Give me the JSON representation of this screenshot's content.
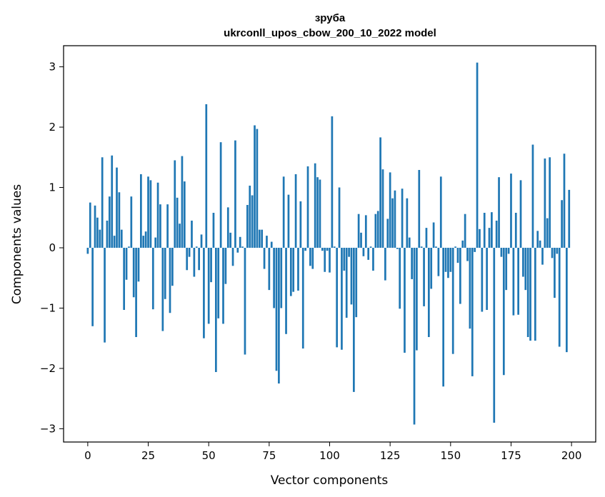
{
  "chart_data": {
    "type": "bar",
    "title": "зруба",
    "subtitle": "ukrconll_upos_cbow_200_10_2022 model",
    "xlabel": "Vector components",
    "ylabel": "Components values",
    "xlim": [
      -10,
      210
    ],
    "ylim": [
      -3.22,
      3.35
    ],
    "xticks": [
      0,
      25,
      50,
      75,
      100,
      125,
      150,
      175,
      200
    ],
    "xtick_labels": [
      "0",
      "25",
      "50",
      "75",
      "100",
      "125",
      "150",
      "175",
      "200"
    ],
    "yticks": [
      3,
      2,
      1,
      0,
      -1,
      -2,
      -3
    ],
    "ytick_labels": [
      "3",
      "2",
      "1",
      "0",
      "−1",
      "−2",
      "−3"
    ],
    "grid": false,
    "bar_color": "#1f77b4",
    "x": [
      0,
      1,
      2,
      3,
      4,
      5,
      6,
      7,
      8,
      9,
      10,
      11,
      12,
      13,
      14,
      15,
      16,
      17,
      18,
      19,
      20,
      21,
      22,
      23,
      24,
      25,
      26,
      27,
      28,
      29,
      30,
      31,
      32,
      33,
      34,
      35,
      36,
      37,
      38,
      39,
      40,
      41,
      42,
      43,
      44,
      45,
      46,
      47,
      48,
      49,
      50,
      51,
      52,
      53,
      54,
      55,
      56,
      57,
      58,
      59,
      60,
      61,
      62,
      63,
      64,
      65,
      66,
      67,
      68,
      69,
      70,
      71,
      72,
      73,
      74,
      75,
      76,
      77,
      78,
      79,
      80,
      81,
      82,
      83,
      84,
      85,
      86,
      87,
      88,
      89,
      90,
      91,
      92,
      93,
      94,
      95,
      96,
      97,
      98,
      99,
      100,
      101,
      102,
      103,
      104,
      105,
      106,
      107,
      108,
      109,
      110,
      111,
      112,
      113,
      114,
      115,
      116,
      117,
      118,
      119,
      120,
      121,
      122,
      123,
      124,
      125,
      126,
      127,
      128,
      129,
      130,
      131,
      132,
      133,
      134,
      135,
      136,
      137,
      138,
      139,
      140,
      141,
      142,
      143,
      144,
      145,
      146,
      147,
      148,
      149,
      150,
      151,
      152,
      153,
      154,
      155,
      156,
      157,
      158,
      159,
      160,
      161,
      162,
      163,
      164,
      165,
      166,
      167,
      168,
      169,
      170,
      171,
      172,
      173,
      174,
      175,
      176,
      177,
      178,
      179,
      180,
      181,
      182,
      183,
      184,
      185,
      186,
      187,
      188,
      189,
      190,
      191,
      192,
      193,
      194,
      195,
      196,
      197,
      198,
      199
    ],
    "values": [
      -0.1,
      0.75,
      -1.3,
      0.7,
      0.5,
      0.3,
      1.5,
      -1.57,
      0.45,
      0.85,
      1.53,
      0.2,
      1.33,
      0.92,
      0.3,
      -1.03,
      -0.53,
      0.02,
      0.85,
      -0.82,
      -1.48,
      -0.56,
      1.22,
      0.2,
      0.27,
      1.18,
      1.12,
      -1.02,
      0.17,
      1.08,
      0.72,
      -1.38,
      -0.85,
      0.72,
      -1.08,
      -0.63,
      1.45,
      0.83,
      0.4,
      1.52,
      1.1,
      -0.37,
      -0.15,
      0.45,
      -0.48,
      0.02,
      -0.37,
      0.22,
      -1.5,
      2.38,
      -1.26,
      -0.57,
      0.58,
      -2.06,
      -1.17,
      1.75,
      -1.26,
      -0.6,
      0.67,
      0.25,
      -0.3,
      1.78,
      -0.08,
      0.18,
      0.02,
      -1.77,
      0.71,
      1.03,
      0.87,
      2.03,
      1.97,
      0.3,
      0.3,
      -0.35,
      0.2,
      -0.7,
      0.1,
      -1.0,
      -2.04,
      -2.25,
      -1.0,
      1.18,
      -1.43,
      0.88,
      -0.8,
      -0.73,
      1.22,
      -0.71,
      0.77,
      -1.67,
      -0.05,
      1.35,
      -0.3,
      -0.35,
      1.4,
      1.17,
      1.13,
      -0.05,
      -0.4,
      -0.05,
      -0.41,
      2.18,
      0.02,
      -1.65,
      1.0,
      -1.69,
      -0.38,
      -1.16,
      -0.15,
      -0.94,
      -2.39,
      -1.15,
      0.56,
      0.25,
      -0.14,
      0.54,
      -0.2,
      0.02,
      -0.38,
      0.56,
      0.61,
      1.83,
      1.3,
      -0.54,
      0.48,
      1.25,
      0.82,
      0.95,
      -0.02,
      -1.01,
      0.98,
      -1.74,
      0.82,
      0.17,
      -0.52,
      -2.93,
      -1.7,
      1.29,
      0.02,
      -0.97,
      0.33,
      -1.48,
      -0.68,
      0.42,
      0.02,
      -0.47,
      1.18,
      -2.3,
      -0.4,
      -0.5,
      -0.4,
      -1.76,
      0.02,
      -0.25,
      -0.93,
      0.12,
      0.56,
      -0.22,
      -1.34,
      -2.13,
      -0.07,
      3.07,
      0.31,
      -1.06,
      0.58,
      -1.03,
      0.33,
      0.59,
      -2.9,
      0.45,
      1.17,
      -0.15,
      -2.11,
      -0.7,
      -0.1,
      1.23,
      -1.12,
      0.58,
      -1.11,
      1.12,
      -0.48,
      -0.7,
      -1.48,
      -1.54,
      1.71,
      -1.54,
      0.28,
      0.12,
      -0.28,
      1.48,
      0.49,
      1.5,
      -0.17,
      -0.83,
      -0.1,
      -1.64,
      0.79,
      1.56,
      -1.73,
      0.96
    ]
  }
}
